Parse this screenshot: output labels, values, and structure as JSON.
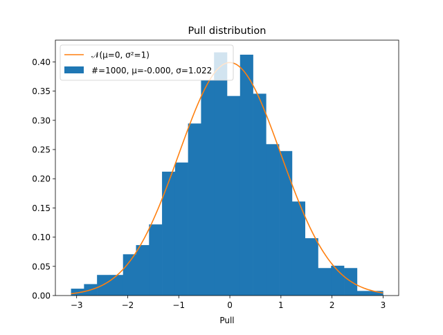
{
  "chart_data": {
    "type": "bar",
    "title": "Pull distribution",
    "xlabel": "Pull",
    "ylabel": "",
    "xlim": [
      -3.416,
      3.306
    ],
    "ylim": [
      0,
      0.4373
    ],
    "xticks": [
      -3,
      -2,
      -1,
      0,
      1,
      2,
      3
    ],
    "xtick_labels": [
      "−3",
      "−2",
      "−1",
      "0",
      "1",
      "2",
      "3"
    ],
    "yticks": [
      0,
      0.05,
      0.1,
      0.15,
      0.2,
      0.25,
      0.3,
      0.35,
      0.4
    ],
    "ytick_labels": [
      "0.00",
      "0.05",
      "0.10",
      "0.15",
      "0.20",
      "0.25",
      "0.30",
      "0.35",
      "0.40"
    ],
    "grid": false,
    "legend_placement": "upper-left",
    "histogram": {
      "name": "#=1000, μ=-0.000, σ=1.022",
      "color": "#1f77b4",
      "bin_start": -3.11,
      "bin_end": 3.0,
      "values": [
        0.0118,
        0.0196,
        0.0353,
        0.0353,
        0.0707,
        0.0864,
        0.1218,
        0.2121,
        0.2278,
        0.2946,
        0.3692,
        0.4164,
        0.3417,
        0.4124,
        0.3456,
        0.2592,
        0.2474,
        0.161,
        0.0982,
        0.0471,
        0.0511,
        0.0471,
        0.0079,
        0.0079
      ]
    },
    "curve": {
      "name": "𝒩(μ=0, σ²=1)",
      "color": "#ff7f0e",
      "mu": 0,
      "sigma": 1,
      "x_range": [
        -3.11,
        3.0
      ]
    }
  }
}
